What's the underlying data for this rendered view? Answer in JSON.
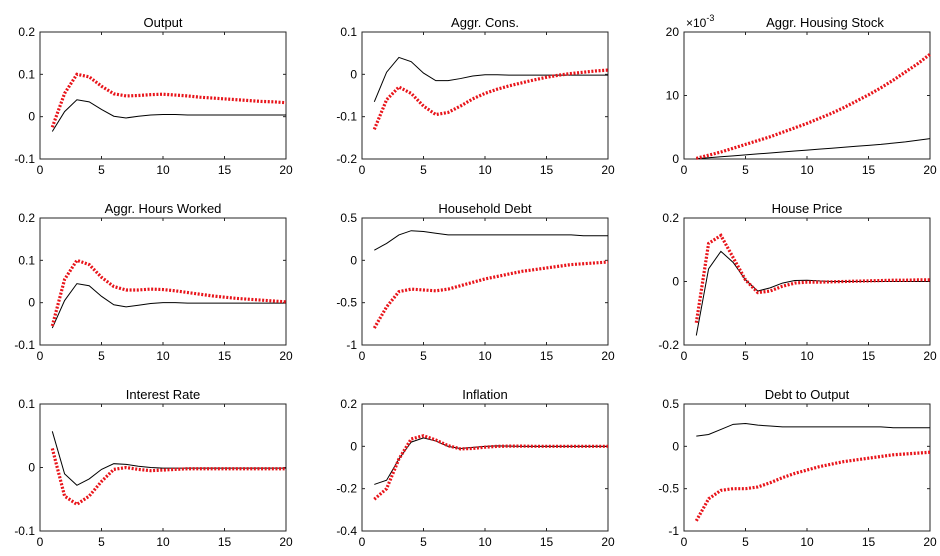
{
  "colors": {
    "series_a": "#000000",
    "series_b": "#e8141a",
    "axis": "#262626",
    "background": "#ffffff"
  },
  "chart_data": [
    {
      "type": "line",
      "title": "Output",
      "xlim": [
        0,
        20
      ],
      "ylim": [
        -0.1,
        0.2
      ],
      "xticks": [
        0,
        5,
        10,
        15,
        20
      ],
      "yticks": [
        -0.1,
        0,
        0.1,
        0.2
      ],
      "ytick_labels": [
        "-0.1",
        "0",
        "0.1",
        "0.2"
      ],
      "x": [
        1,
        2,
        3,
        4,
        5,
        6,
        7,
        8,
        9,
        10,
        11,
        12,
        13,
        14,
        15,
        16,
        17,
        18,
        19,
        20
      ],
      "series": [
        {
          "style": "solid",
          "values": [
            -0.035,
            0.012,
            0.04,
            0.035,
            0.017,
            0.001,
            -0.003,
            0.001,
            0.004,
            0.005,
            0.005,
            0.004,
            0.004,
            0.004,
            0.004,
            0.004,
            0.004,
            0.004,
            0.004,
            0.004
          ]
        },
        {
          "style": "dotted",
          "values": [
            -0.025,
            0.055,
            0.1,
            0.094,
            0.072,
            0.054,
            0.049,
            0.05,
            0.052,
            0.053,
            0.051,
            0.049,
            0.046,
            0.044,
            0.042,
            0.04,
            0.038,
            0.036,
            0.035,
            0.033
          ]
        }
      ]
    },
    {
      "type": "line",
      "title": "Aggr. Cons.",
      "xlim": [
        0,
        20
      ],
      "ylim": [
        -0.2,
        0.1
      ],
      "xticks": [
        0,
        5,
        10,
        15,
        20
      ],
      "yticks": [
        -0.2,
        -0.1,
        0,
        0.1
      ],
      "ytick_labels": [
        "-0.2",
        "-0.1",
        "0",
        "0.1"
      ],
      "x": [
        1,
        2,
        3,
        4,
        5,
        6,
        7,
        8,
        9,
        10,
        11,
        12,
        13,
        14,
        15,
        16,
        17,
        18,
        19,
        20
      ],
      "series": [
        {
          "style": "solid",
          "values": [
            -0.065,
            0.005,
            0.04,
            0.03,
            0.003,
            -0.015,
            -0.015,
            -0.01,
            -0.004,
            -0.001,
            -0.001,
            -0.002,
            -0.002,
            -0.002,
            -0.002,
            -0.002,
            -0.002,
            -0.002,
            -0.002,
            -0.002
          ]
        },
        {
          "style": "dotted",
          "values": [
            -0.13,
            -0.06,
            -0.03,
            -0.045,
            -0.075,
            -0.095,
            -0.09,
            -0.075,
            -0.058,
            -0.045,
            -0.035,
            -0.027,
            -0.02,
            -0.013,
            -0.007,
            -0.002,
            0.002,
            0.005,
            0.008,
            0.01
          ]
        }
      ]
    },
    {
      "type": "line",
      "title": "Aggr. Housing Stock",
      "scale_label": "×10",
      "scale_exponent": "-3",
      "xlim": [
        0,
        20
      ],
      "ylim": [
        0,
        20
      ],
      "xticks": [
        0,
        5,
        10,
        15,
        20
      ],
      "yticks": [
        0,
        10,
        20
      ],
      "ytick_labels": [
        "0",
        "10",
        "20"
      ],
      "x": [
        1,
        2,
        3,
        4,
        5,
        6,
        7,
        8,
        9,
        10,
        11,
        12,
        13,
        14,
        15,
        16,
        17,
        18,
        19,
        20
      ],
      "series": [
        {
          "style": "solid",
          "values": [
            0.05,
            0.2,
            0.35,
            0.5,
            0.65,
            0.8,
            0.95,
            1.1,
            1.25,
            1.4,
            1.55,
            1.7,
            1.85,
            2.0,
            2.15,
            2.3,
            2.5,
            2.7,
            2.95,
            3.2
          ]
        },
        {
          "style": "dotted",
          "values": [
            0.1,
            0.6,
            1.1,
            1.7,
            2.3,
            2.9,
            3.5,
            4.2,
            4.9,
            5.6,
            6.4,
            7.2,
            8.1,
            9.1,
            10.1,
            11.2,
            12.4,
            13.7,
            15.0,
            16.5
          ]
        }
      ]
    },
    {
      "type": "line",
      "title": "Aggr. Hours Worked",
      "xlim": [
        0,
        20
      ],
      "ylim": [
        -0.1,
        0.2
      ],
      "xticks": [
        0,
        5,
        10,
        15,
        20
      ],
      "yticks": [
        -0.1,
        0,
        0.1,
        0.2
      ],
      "ytick_labels": [
        "-0.1",
        "0",
        "0.1",
        "0.2"
      ],
      "x": [
        1,
        2,
        3,
        4,
        5,
        6,
        7,
        8,
        9,
        10,
        11,
        12,
        13,
        14,
        15,
        16,
        17,
        18,
        19,
        20
      ],
      "series": [
        {
          "style": "solid",
          "values": [
            -0.06,
            0.005,
            0.045,
            0.04,
            0.015,
            -0.005,
            -0.01,
            -0.006,
            -0.002,
            0.0,
            0.0,
            -0.001,
            -0.001,
            -0.001,
            -0.001,
            -0.001,
            -0.001,
            -0.001,
            -0.001,
            -0.001
          ]
        },
        {
          "style": "dotted",
          "values": [
            -0.055,
            0.055,
            0.1,
            0.09,
            0.06,
            0.038,
            0.03,
            0.03,
            0.032,
            0.031,
            0.028,
            0.024,
            0.02,
            0.016,
            0.013,
            0.01,
            0.008,
            0.006,
            0.004,
            0.002
          ]
        }
      ]
    },
    {
      "type": "line",
      "title": "Household Debt",
      "xlim": [
        0,
        20
      ],
      "ylim": [
        -1,
        0.5
      ],
      "xticks": [
        0,
        5,
        10,
        15,
        20
      ],
      "yticks": [
        -1,
        -0.5,
        0,
        0.5
      ],
      "ytick_labels": [
        "-1",
        "-0.5",
        "0",
        "0.5"
      ],
      "x": [
        1,
        2,
        3,
        4,
        5,
        6,
        7,
        8,
        9,
        10,
        11,
        12,
        13,
        14,
        15,
        16,
        17,
        18,
        19,
        20
      ],
      "series": [
        {
          "style": "solid",
          "values": [
            0.12,
            0.2,
            0.3,
            0.35,
            0.34,
            0.32,
            0.3,
            0.3,
            0.3,
            0.3,
            0.3,
            0.3,
            0.3,
            0.3,
            0.3,
            0.3,
            0.3,
            0.29,
            0.29,
            0.29
          ]
        },
        {
          "style": "dotted",
          "values": [
            -0.8,
            -0.55,
            -0.37,
            -0.34,
            -0.35,
            -0.36,
            -0.34,
            -0.3,
            -0.26,
            -0.22,
            -0.19,
            -0.16,
            -0.13,
            -0.11,
            -0.09,
            -0.07,
            -0.05,
            -0.04,
            -0.03,
            -0.02
          ]
        }
      ]
    },
    {
      "type": "line",
      "title": "House Price",
      "xlim": [
        0,
        20
      ],
      "ylim": [
        -0.2,
        0.2
      ],
      "xticks": [
        0,
        5,
        10,
        15,
        20
      ],
      "yticks": [
        -0.2,
        0,
        0.2
      ],
      "ytick_labels": [
        "-0.2",
        "0",
        "0.2"
      ],
      "x": [
        1,
        2,
        3,
        4,
        5,
        6,
        7,
        8,
        9,
        10,
        11,
        12,
        13,
        14,
        15,
        16,
        17,
        18,
        19,
        20
      ],
      "series": [
        {
          "style": "solid",
          "values": [
            -0.17,
            0.04,
            0.095,
            0.06,
            0.005,
            -0.03,
            -0.02,
            -0.005,
            0.003,
            0.004,
            0.002,
            0.0,
            0.0,
            0.0,
            0.0,
            0.0,
            0.0,
            0.0,
            0.0,
            0.0
          ]
        },
        {
          "style": "dotted",
          "values": [
            -0.13,
            0.12,
            0.145,
            0.075,
            0.005,
            -0.035,
            -0.03,
            -0.015,
            -0.005,
            -0.002,
            -0.002,
            -0.001,
            0.0,
            0.001,
            0.002,
            0.003,
            0.004,
            0.004,
            0.005,
            0.005
          ]
        }
      ]
    },
    {
      "type": "line",
      "title": "Interest Rate",
      "xlim": [
        0,
        20
      ],
      "ylim": [
        -0.1,
        0.1
      ],
      "xticks": [
        0,
        5,
        10,
        15,
        20
      ],
      "yticks": [
        -0.1,
        0,
        0.1
      ],
      "ytick_labels": [
        "-0.1",
        "0",
        "0.1"
      ],
      "x": [
        1,
        2,
        3,
        4,
        5,
        6,
        7,
        8,
        9,
        10,
        11,
        12,
        13,
        14,
        15,
        16,
        17,
        18,
        19,
        20
      ],
      "series": [
        {
          "style": "solid",
          "values": [
            0.057,
            -0.01,
            -0.028,
            -0.018,
            -0.003,
            0.006,
            0.005,
            0.002,
            0.0,
            -0.001,
            -0.001,
            -0.001,
            -0.001,
            -0.001,
            -0.001,
            -0.001,
            -0.001,
            -0.001,
            -0.001,
            -0.001
          ]
        },
        {
          "style": "dotted",
          "values": [
            0.03,
            -0.045,
            -0.058,
            -0.045,
            -0.022,
            -0.003,
            0.0,
            -0.003,
            -0.005,
            -0.004,
            -0.003,
            -0.002,
            -0.002,
            -0.002,
            -0.002,
            -0.002,
            -0.002,
            -0.002,
            -0.002,
            -0.002
          ]
        }
      ]
    },
    {
      "type": "line",
      "title": "Inflation",
      "xlim": [
        0,
        20
      ],
      "ylim": [
        -0.4,
        0.2
      ],
      "xticks": [
        0,
        5,
        10,
        15,
        20
      ],
      "yticks": [
        -0.4,
        -0.2,
        0,
        0.2
      ],
      "ytick_labels": [
        "-0.4",
        "-0.2",
        "0",
        "0.2"
      ],
      "x": [
        1,
        2,
        3,
        4,
        5,
        6,
        7,
        8,
        9,
        10,
        11,
        12,
        13,
        14,
        15,
        16,
        17,
        18,
        19,
        20
      ],
      "series": [
        {
          "style": "solid",
          "values": [
            -0.18,
            -0.16,
            -0.06,
            0.02,
            0.04,
            0.025,
            0.0,
            -0.01,
            -0.005,
            0.0,
            0.002,
            0.001,
            0.0,
            0.0,
            0.0,
            0.0,
            0.0,
            0.0,
            0.0,
            0.0
          ]
        },
        {
          "style": "dotted",
          "values": [
            -0.25,
            -0.2,
            -0.06,
            0.035,
            0.05,
            0.03,
            0.003,
            -0.012,
            -0.01,
            -0.004,
            0.0,
            0.001,
            0.001,
            0.0,
            0.0,
            0.0,
            0.0,
            0.0,
            0.0,
            0.0
          ]
        }
      ]
    },
    {
      "type": "line",
      "title": "Debt to Output",
      "xlim": [
        0,
        20
      ],
      "ylim": [
        -1,
        0.5
      ],
      "xticks": [
        0,
        5,
        10,
        15,
        20
      ],
      "yticks": [
        -1,
        -0.5,
        0,
        0.5
      ],
      "ytick_labels": [
        "-1",
        "-0.5",
        "0",
        "0.5"
      ],
      "x": [
        1,
        2,
        3,
        4,
        5,
        6,
        7,
        8,
        9,
        10,
        11,
        12,
        13,
        14,
        15,
        16,
        17,
        18,
        19,
        20
      ],
      "series": [
        {
          "style": "solid",
          "values": [
            0.12,
            0.14,
            0.2,
            0.26,
            0.27,
            0.25,
            0.24,
            0.23,
            0.23,
            0.23,
            0.23,
            0.23,
            0.23,
            0.23,
            0.23,
            0.23,
            0.22,
            0.22,
            0.22,
            0.22
          ]
        },
        {
          "style": "dotted",
          "values": [
            -0.88,
            -0.62,
            -0.52,
            -0.5,
            -0.5,
            -0.48,
            -0.43,
            -0.37,
            -0.32,
            -0.28,
            -0.24,
            -0.21,
            -0.18,
            -0.16,
            -0.14,
            -0.12,
            -0.1,
            -0.09,
            -0.08,
            -0.07
          ]
        }
      ]
    }
  ]
}
